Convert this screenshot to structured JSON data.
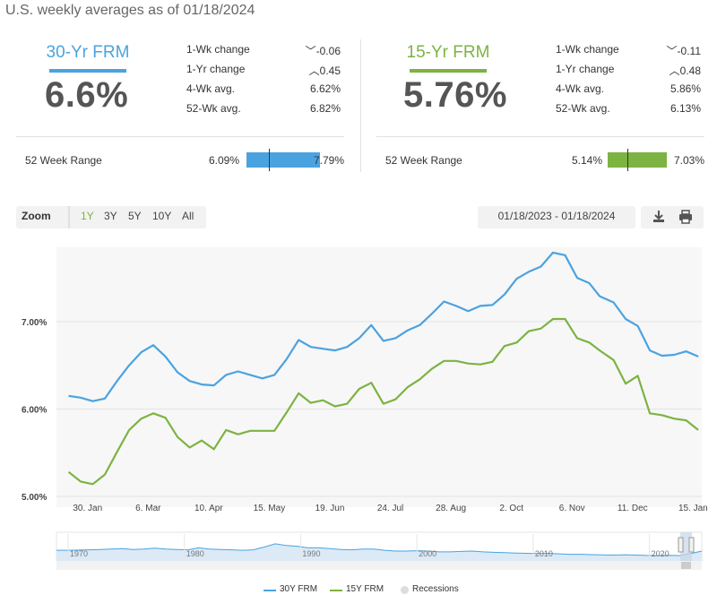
{
  "subtitle": "U.S. weekly averages as of 01/18/2024",
  "cards": [
    {
      "name": "30-Yr FRM",
      "color": "#4aa3df",
      "rate": "6.6%",
      "stats": [
        {
          "label": "1-Wk change",
          "value": "-0.06",
          "arrow": "down"
        },
        {
          "label": "1-Yr change",
          "value": "0.45",
          "arrow": "up"
        },
        {
          "label": "4-Wk avg.",
          "value": "6.62%"
        },
        {
          "label": "52-Wk avg.",
          "value": "6.82%"
        }
      ],
      "range_label": "52 Week Range",
      "range_low": "6.09%",
      "range_high": "7.79%",
      "range_low_value": 6.09,
      "range_high_value": 7.79,
      "range_current": 6.6
    },
    {
      "name": "15-Yr FRM",
      "color": "#7cb342",
      "rate": "5.76%",
      "stats": [
        {
          "label": "1-Wk change",
          "value": "-0.11",
          "arrow": "down"
        },
        {
          "label": "1-Yr change",
          "value": "0.48",
          "arrow": "up"
        },
        {
          "label": "4-Wk avg.",
          "value": "5.86%"
        },
        {
          "label": "52-Wk avg.",
          "value": "6.13%"
        }
      ],
      "range_label": "52 Week Range",
      "range_low": "5.14%",
      "range_high": "7.03%",
      "range_low_value": 5.14,
      "range_high_value": 7.03,
      "range_current": 5.76
    }
  ],
  "toolbar": {
    "zoom_label": "Zoom",
    "zoom_buttons": [
      "1Y",
      "3Y",
      "5Y",
      "10Y",
      "All"
    ],
    "active_zoom": "1Y",
    "date_range": "01/18/2023 - 01/18/2024",
    "download_icon": "download-icon",
    "print_icon": "print-icon"
  },
  "chart_data": {
    "type": "line",
    "x_tick_labels": [
      "30. Jan",
      "6. Mar",
      "10. Apr",
      "15. May",
      "19. Jun",
      "24. Jul",
      "28. Aug",
      "2. Oct",
      "6. Nov",
      "11. Dec",
      "15. Jan"
    ],
    "y_tick_labels": [
      "5.00%",
      "6.00%",
      "7.00%"
    ],
    "ylim": [
      5.0,
      7.85
    ],
    "grid": true,
    "series": [
      {
        "name": "30Y FRM",
        "color": "#4aa3df",
        "x": [
          "2023-01-19",
          "2023-01-26",
          "2023-02-02",
          "2023-02-09",
          "2023-02-16",
          "2023-02-23",
          "2023-03-02",
          "2023-03-09",
          "2023-03-16",
          "2023-03-23",
          "2023-03-30",
          "2023-04-06",
          "2023-04-13",
          "2023-04-20",
          "2023-04-27",
          "2023-05-04",
          "2023-05-11",
          "2023-05-18",
          "2023-05-25",
          "2023-06-01",
          "2023-06-08",
          "2023-06-15",
          "2023-06-22",
          "2023-06-29",
          "2023-07-06",
          "2023-07-13",
          "2023-07-20",
          "2023-07-27",
          "2023-08-03",
          "2023-08-10",
          "2023-08-17",
          "2023-08-24",
          "2023-08-31",
          "2023-09-07",
          "2023-09-14",
          "2023-09-21",
          "2023-09-28",
          "2023-10-05",
          "2023-10-12",
          "2023-10-19",
          "2023-10-26",
          "2023-11-02",
          "2023-11-09",
          "2023-11-16",
          "2023-11-22",
          "2023-11-30",
          "2023-12-07",
          "2023-12-14",
          "2023-12-21",
          "2023-12-28",
          "2024-01-04",
          "2024-01-11",
          "2024-01-18"
        ],
        "values": [
          6.15,
          6.13,
          6.09,
          6.12,
          6.32,
          6.5,
          6.65,
          6.73,
          6.6,
          6.42,
          6.32,
          6.28,
          6.27,
          6.39,
          6.43,
          6.39,
          6.35,
          6.39,
          6.57,
          6.79,
          6.71,
          6.69,
          6.67,
          6.71,
          6.81,
          6.96,
          6.78,
          6.81,
          6.9,
          6.96,
          7.09,
          7.23,
          7.18,
          7.12,
          7.18,
          7.19,
          7.31,
          7.49,
          7.57,
          7.63,
          7.79,
          7.76,
          7.5,
          7.44,
          7.29,
          7.22,
          7.03,
          6.95,
          6.67,
          6.61,
          6.62,
          6.66,
          6.6
        ]
      },
      {
        "name": "15Y FRM",
        "color": "#7cb342",
        "x": [
          "2023-01-19",
          "2023-01-26",
          "2023-02-02",
          "2023-02-09",
          "2023-02-16",
          "2023-02-23",
          "2023-03-02",
          "2023-03-09",
          "2023-03-16",
          "2023-03-23",
          "2023-03-30",
          "2023-04-06",
          "2023-04-13",
          "2023-04-20",
          "2023-04-27",
          "2023-05-04",
          "2023-05-11",
          "2023-05-18",
          "2023-05-25",
          "2023-06-01",
          "2023-06-08",
          "2023-06-15",
          "2023-06-22",
          "2023-06-29",
          "2023-07-06",
          "2023-07-13",
          "2023-07-20",
          "2023-07-27",
          "2023-08-03",
          "2023-08-10",
          "2023-08-17",
          "2023-08-24",
          "2023-08-31",
          "2023-09-07",
          "2023-09-14",
          "2023-09-21",
          "2023-09-28",
          "2023-10-05",
          "2023-10-12",
          "2023-10-19",
          "2023-10-26",
          "2023-11-02",
          "2023-11-09",
          "2023-11-16",
          "2023-11-22",
          "2023-11-30",
          "2023-12-07",
          "2023-12-14",
          "2023-12-21",
          "2023-12-28",
          "2024-01-04",
          "2024-01-11",
          "2024-01-18"
        ],
        "values": [
          5.28,
          5.17,
          5.14,
          5.25,
          5.51,
          5.76,
          5.89,
          5.95,
          5.9,
          5.68,
          5.56,
          5.64,
          5.54,
          5.76,
          5.71,
          5.75,
          5.75,
          5.75,
          5.96,
          6.18,
          6.07,
          6.1,
          6.03,
          6.06,
          6.23,
          6.3,
          6.06,
          6.11,
          6.25,
          6.34,
          6.46,
          6.55,
          6.55,
          6.52,
          6.51,
          6.54,
          6.72,
          6.76,
          6.89,
          6.92,
          7.03,
          7.03,
          6.81,
          6.76,
          6.67,
          6.56,
          6.29,
          6.38,
          5.95,
          5.93,
          5.89,
          5.87,
          5.76
        ]
      }
    ],
    "legend": [
      "30Y FRM",
      "15Y FRM",
      "Recessions"
    ],
    "legend_placement": "bottom-center",
    "navigator": {
      "x_tick_labels": [
        "1970",
        "1980",
        "1990",
        "2000",
        "2010",
        "2020"
      ]
    }
  }
}
